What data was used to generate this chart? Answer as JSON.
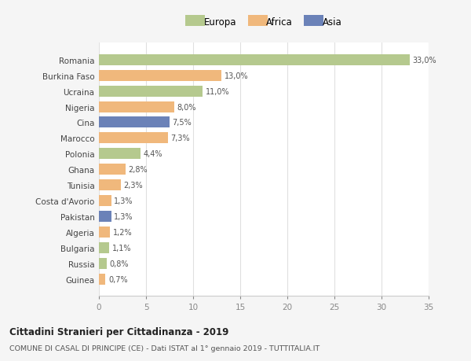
{
  "countries": [
    "Romania",
    "Burkina Faso",
    "Ucraina",
    "Nigeria",
    "Cina",
    "Marocco",
    "Polonia",
    "Ghana",
    "Tunisia",
    "Costa d'Avorio",
    "Pakistan",
    "Algeria",
    "Bulgaria",
    "Russia",
    "Guinea"
  ],
  "values": [
    33.0,
    13.0,
    11.0,
    8.0,
    7.5,
    7.3,
    4.4,
    2.8,
    2.3,
    1.3,
    1.3,
    1.2,
    1.1,
    0.8,
    0.7
  ],
  "labels": [
    "33,0%",
    "13,0%",
    "11,0%",
    "8,0%",
    "7,5%",
    "7,3%",
    "4,4%",
    "2,8%",
    "2,3%",
    "1,3%",
    "1,3%",
    "1,2%",
    "1,1%",
    "0,8%",
    "0,7%"
  ],
  "continent": [
    "Europa",
    "Africa",
    "Europa",
    "Africa",
    "Asia",
    "Africa",
    "Europa",
    "Africa",
    "Africa",
    "Africa",
    "Asia",
    "Africa",
    "Europa",
    "Europa",
    "Africa"
  ],
  "colors": {
    "Europa": "#b5c98e",
    "Africa": "#f0b87c",
    "Asia": "#6b82b8"
  },
  "title": "Cittadini Stranieri per Cittadinanza - 2019",
  "subtitle": "COMUNE DI CASAL DI PRINCIPE (CE) - Dati ISTAT al 1° gennaio 2019 - TUTTITALIA.IT",
  "xlim": [
    0,
    35
  ],
  "xticks": [
    0,
    5,
    10,
    15,
    20,
    25,
    30,
    35
  ],
  "bg_color": "#f5f5f5",
  "plot_bg": "#ffffff",
  "grid_color": "#e0e0e0"
}
